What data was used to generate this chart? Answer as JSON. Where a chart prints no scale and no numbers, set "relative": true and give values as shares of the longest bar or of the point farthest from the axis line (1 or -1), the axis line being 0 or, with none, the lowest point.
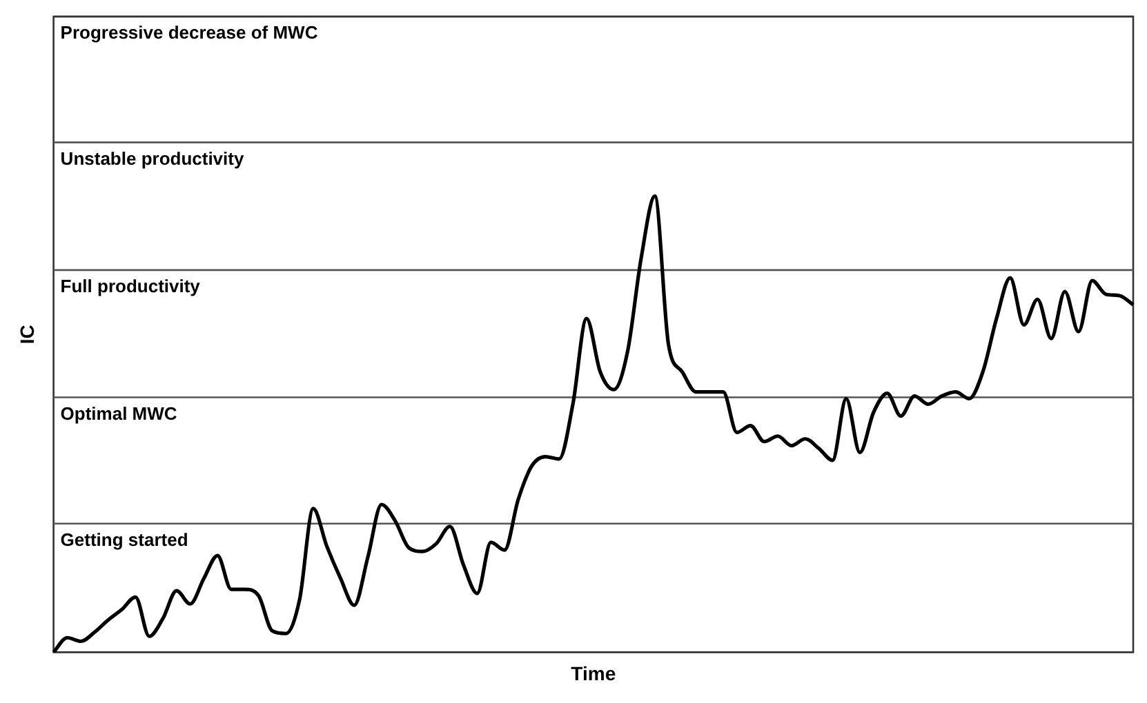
{
  "chart_data": {
    "type": "line",
    "relative": true,
    "xlabel": "Time",
    "ylabel": "IC",
    "grid": false,
    "legend": false,
    "marker": "none",
    "line_style": "solid",
    "categories": [
      null,
      null,
      null,
      null,
      null,
      null,
      null,
      null,
      null,
      null,
      null,
      null,
      null,
      null,
      null,
      null,
      null,
      null,
      null,
      null,
      null,
      null,
      null,
      null,
      null,
      null,
      null,
      null,
      null,
      null,
      null,
      null,
      null,
      null,
      null,
      null,
      null,
      null,
      null,
      null,
      null,
      null,
      null,
      null,
      null,
      null,
      null,
      null,
      null,
      null,
      null,
      null,
      null,
      null,
      null,
      null,
      null,
      null,
      null,
      null,
      null,
      null,
      null,
      null,
      null,
      null,
      null,
      null,
      null,
      null,
      null,
      null,
      null,
      null,
      null,
      null,
      null,
      null,
      null,
      null
    ],
    "series": [
      {
        "color": "#000000",
        "values": [
          0,
          0.032,
          0.024,
          0.044,
          0.071,
          0.094,
          0.121,
          0.035,
          0.074,
          0.135,
          0.106,
          0.162,
          0.212,
          0.138,
          0.138,
          0.124,
          0.047,
          0.041,
          0.115,
          0.315,
          0.232,
          0.162,
          0.103,
          0.209,
          0.324,
          0.288,
          0.229,
          0.221,
          0.238,
          0.276,
          0.191,
          0.129,
          0.241,
          0.224,
          0.335,
          0.409,
          0.429,
          0.424,
          0.544,
          0.732,
          0.615,
          0.576,
          0.659,
          0.865,
          1,
          0.674,
          0.615,
          0.571,
          0.571,
          0.571,
          0.482,
          0.497,
          0.462,
          0.474,
          0.453,
          0.468,
          0.447,
          0.421,
          0.556,
          0.438,
          0.526,
          0.568,
          0.518,
          0.562,
          0.544,
          0.562,
          0.571,
          0.556,
          0.615,
          0.732,
          0.821,
          0.718,
          0.774,
          0.688,
          0.791,
          0.703,
          0.815,
          0.785,
          0.782,
          0.762
        ]
      }
    ],
    "ref_lines": [
      {
        "axis": "y",
        "value": 0.282,
        "label": "Getting started",
        "color": "#555555"
      },
      {
        "axis": "y",
        "value": 0.559,
        "label": "Optimal MWC",
        "color": "#555555"
      },
      {
        "axis": "y",
        "value": 0.838,
        "label": "Full productivity",
        "color": "#555555"
      },
      {
        "axis": "y",
        "value": 1.118,
        "label": "Unstable productivity",
        "color": "#555555"
      },
      {
        "axis": "y",
        "value": 1.394,
        "label": "Progressive decrease of MWC",
        "color": "#333333"
      }
    ]
  }
}
